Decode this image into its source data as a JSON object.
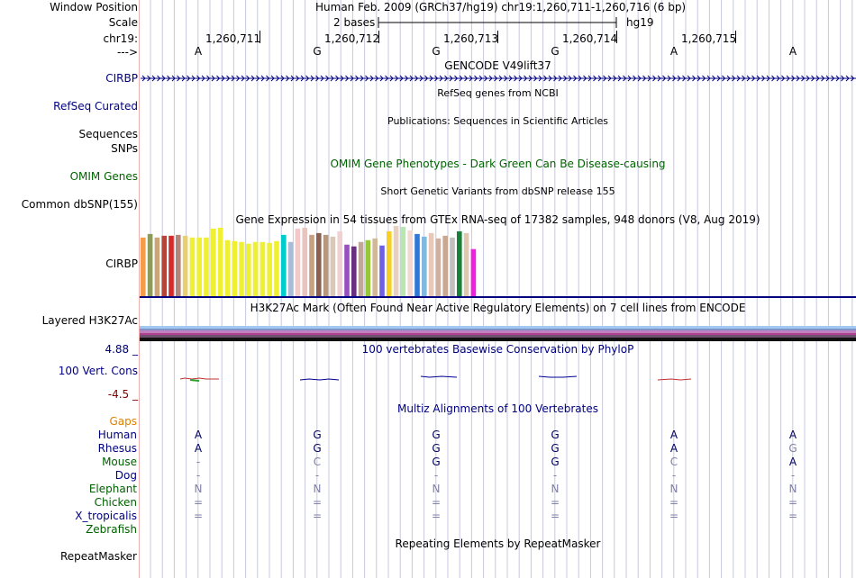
{
  "colors": {
    "link_blue": "#000080",
    "omim_green": "#006400",
    "gaps_orange": "#e08000",
    "multiz_green": "#006000",
    "cons_red": "#800000",
    "tick_gray": "#999999"
  },
  "labels": {
    "window_position": "Window Position",
    "scale": "Scale",
    "chrom": "chr19:",
    "strand": "--->",
    "cirbp_gene": "CIRBP",
    "refseq": "RefSeq Curated",
    "sequences": "Sequences",
    "snps": "SNPs",
    "omim": "OMIM Genes",
    "dbsnp": "Common dbSNP(155)",
    "gtex_gene": "CIRBP",
    "h3k27ac": "Layered H3K27Ac",
    "cons_max": "4.88 _",
    "cons_name": "100 Vert. Cons",
    "cons_min": "-4.5 _",
    "gaps": "Gaps",
    "repeatmasker": "RepeatMasker"
  },
  "header": {
    "position_text": "Human Feb. 2009 (GRCh37/hg19)   chr19:1,260,711-1,260,716 (6 bp)",
    "scale_text": "2 bases",
    "assembly": "hg19"
  },
  "ruler": {
    "positions": [
      "1,260,711",
      "1,260,712",
      "1,260,713",
      "1,260,714",
      "1,260,715"
    ]
  },
  "sequence": [
    "A",
    "G",
    "G",
    "G",
    "A",
    "A"
  ],
  "tracks": {
    "gencode_title": "GENCODE V49lift37",
    "refseq_title": "RefSeq genes from NCBI",
    "pubs_title": "Publications: Sequences in Scientific Articles",
    "omim_title": "OMIM Gene Phenotypes - Dark Green Can Be Disease-causing",
    "dbsnp_title": "Short Genetic Variants from dbSNP release 155",
    "gtex_title": "Gene Expression in 54 tissues from GTEx RNA-seq of 17382 samples, 948 donors (V8, Aug 2019)",
    "h3k27ac_title": "H3K27Ac Mark (Often Found Near Active Regulatory Elements) on 7 cell lines from ENCODE",
    "phylop_title": "100 vertebrates Basewise Conservation by PhyloP",
    "multiz_title": "Multiz Alignments of 100 Vertebrates",
    "rmsk_title": "Repeating Elements by RepeatMasker"
  },
  "gtex_colors": [
    "#f39c4a",
    "#8c9a5a",
    "#c9a57a",
    "#b5443b",
    "#d62a2a",
    "#b0867a",
    "#e8d070",
    "#f0f032",
    "#f0f032",
    "#f0f032",
    "#f0f032",
    "#f0f032",
    "#f0f032",
    "#f0f032",
    "#f0f032",
    "#f0f032",
    "#f0f032",
    "#f0f032",
    "#f0f032",
    "#f0f032",
    "#00cccc",
    "#a8bcd8",
    "#f2c8c8",
    "#e8c4c0",
    "#c8a080",
    "#8c6050",
    "#b89878",
    "#d8c8b4",
    "#f0d0d0",
    "#9850c0",
    "#6a3080",
    "#c0a898",
    "#98c838",
    "#d0b898",
    "#7060e8",
    "#f8d020",
    "#e8d0c0",
    "#b8e8b0",
    "#f2d8d0",
    "#3078d8",
    "#80b8e0",
    "#e8c8b8",
    "#d0b0a0",
    "#c8a890",
    "#c0c0c0",
    "#188038",
    "#e0c8b0",
    "#f020e0"
  ],
  "gtex_values": [
    66,
    70,
    66,
    68,
    68,
    69,
    68,
    66,
    66,
    66,
    76,
    77,
    63,
    62,
    61,
    59,
    61,
    61,
    60,
    62,
    69,
    61,
    76,
    77,
    69,
    71,
    69,
    67,
    73,
    58,
    56,
    61,
    63,
    65,
    57,
    73,
    79,
    78,
    74,
    70,
    67,
    71,
    65,
    68,
    66,
    73,
    71,
    53
  ],
  "species": [
    {
      "name": "Gaps",
      "bases": [
        "",
        "",
        "",
        "",
        "",
        ""
      ]
    },
    {
      "name": "Human",
      "bases": [
        "A",
        "G",
        "G",
        "G",
        "A",
        "A"
      ]
    },
    {
      "name": "Rhesus",
      "bases": [
        "A",
        "G",
        "G",
        "G",
        "A",
        "G"
      ]
    },
    {
      "name": "Mouse",
      "bases": [
        "-",
        "C",
        "G",
        "G",
        "C",
        "A"
      ]
    },
    {
      "name": "Dog",
      "bases": [
        "-",
        "-",
        "-",
        "-",
        "-",
        "-"
      ]
    },
    {
      "name": "Elephant",
      "bases": [
        "N",
        "N",
        "N",
        "N",
        "N",
        "N"
      ]
    },
    {
      "name": "Chicken",
      "bases": [
        "=",
        "=",
        "=",
        "=",
        "=",
        "="
      ]
    },
    {
      "name": "X_tropicalis",
      "bases": [
        "=",
        "=",
        "=",
        "=",
        "=",
        "="
      ]
    },
    {
      "name": "Zebrafish",
      "bases": [
        "",
        "",
        "",
        "",
        "",
        ""
      ]
    }
  ]
}
